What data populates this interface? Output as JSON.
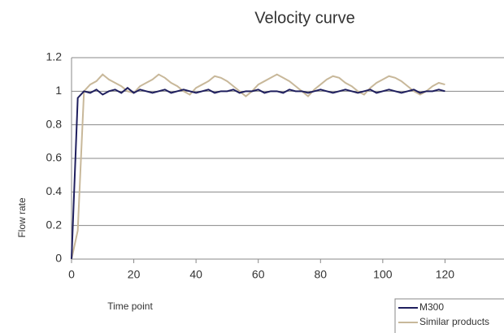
{
  "chart_data": {
    "type": "line",
    "title": "Velocity curve",
    "x_label": "Time point",
    "y_label": "Flow rate",
    "x": [
      0,
      2,
      4,
      6,
      8,
      10,
      12,
      14,
      16,
      18,
      20,
      22,
      24,
      26,
      28,
      30,
      32,
      34,
      36,
      38,
      40,
      42,
      44,
      46,
      48,
      50,
      52,
      54,
      56,
      58,
      60,
      62,
      64,
      66,
      68,
      70,
      72,
      74,
      76,
      78,
      80,
      82,
      84,
      86,
      88,
      90,
      92,
      94,
      96,
      98,
      100,
      102,
      104,
      106,
      108,
      110,
      112,
      114,
      116,
      118,
      120
    ],
    "series": [
      {
        "name": "M300",
        "color": "#1f1f5e",
        "values": [
          0,
          0.96,
          1.0,
          0.99,
          1.01,
          0.98,
          1.0,
          1.01,
          0.99,
          1.02,
          0.99,
          1.01,
          1.0,
          0.99,
          1.0,
          1.01,
          0.99,
          1.0,
          1.01,
          1.0,
          0.99,
          1.0,
          1.01,
          0.99,
          1.0,
          1.0,
          1.01,
          0.99,
          1.0,
          1.0,
          1.01,
          0.99,
          1.0,
          1.0,
          0.99,
          1.01,
          1.0,
          1.0,
          0.99,
          1.0,
          1.01,
          1.0,
          0.99,
          1.0,
          1.01,
          1.0,
          0.99,
          1.0,
          1.01,
          0.99,
          1.0,
          1.01,
          1.0,
          0.99,
          1.0,
          1.01,
          0.99,
          1.0,
          1.0,
          1.01,
          1.0
        ]
      },
      {
        "name": "Similar products",
        "color": "#c8b89a",
        "values": [
          0,
          0.17,
          1.0,
          1.04,
          1.06,
          1.1,
          1.07,
          1.05,
          1.03,
          1.0,
          0.99,
          1.03,
          1.05,
          1.07,
          1.1,
          1.08,
          1.05,
          1.03,
          1.0,
          0.98,
          1.02,
          1.04,
          1.06,
          1.09,
          1.08,
          1.06,
          1.03,
          1.0,
          0.97,
          1.0,
          1.04,
          1.06,
          1.08,
          1.1,
          1.08,
          1.06,
          1.03,
          1.0,
          0.97,
          1.01,
          1.04,
          1.07,
          1.09,
          1.08,
          1.05,
          1.03,
          1.0,
          0.98,
          1.02,
          1.05,
          1.07,
          1.09,
          1.08,
          1.06,
          1.03,
          1.0,
          0.98,
          1.0,
          1.03,
          1.05,
          1.04
        ]
      }
    ],
    "xlim": [
      0,
      140
    ],
    "xticks": [
      0,
      20,
      40,
      60,
      80,
      100,
      120
    ],
    "ylim": [
      0,
      1.2
    ],
    "yticks": [
      0,
      0.2,
      0.4,
      0.6,
      0.8,
      1,
      1.2
    ],
    "grid": true,
    "legend_position": "bottom-right"
  }
}
